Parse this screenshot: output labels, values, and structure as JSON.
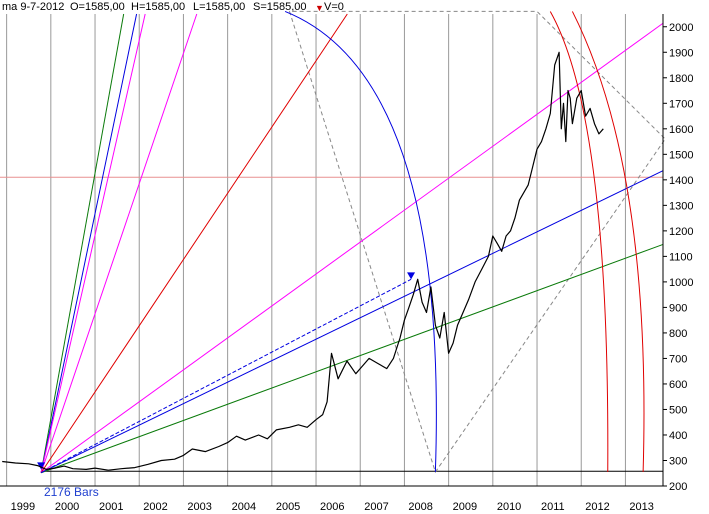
{
  "header": {
    "date": "ma 9-7-2012",
    "open": "O=1585,00",
    "high": "H=1585,00",
    "low": "L=1585,00",
    "close": "S=1585,00",
    "volume_marker_icon": "red-down-triangle-icon",
    "volume": "V=0"
  },
  "annotation": {
    "bars_label": "2176  Bars"
  },
  "colors": {
    "price": "#000000",
    "horizontal_ref": "#e89090",
    "gann_green": "#0a7a0a",
    "gann_magenta": "#ff00ff",
    "gann_red": "#e00000",
    "gann_blue": "#0000e0",
    "diamond_dashed": "#888888",
    "grid": "#999999"
  },
  "chart_data": {
    "type": "line",
    "title": "",
    "xlabel": "",
    "ylabel": "",
    "x_ticks": [
      "1999",
      "2000",
      "2001",
      "2002",
      "2003",
      "2004",
      "2005",
      "2006",
      "2007",
      "2008",
      "2009",
      "2010",
      "2011",
      "2012",
      "2013"
    ],
    "y_ticks": [
      200,
      300,
      400,
      500,
      600,
      700,
      800,
      900,
      1000,
      1100,
      1200,
      1300,
      1400,
      1500,
      1600,
      1700,
      1800,
      1900,
      2000
    ],
    "xlim": [
      1998.85,
      2013.85
    ],
    "ylim": [
      200,
      2050
    ],
    "y_axis_side": "right",
    "grid": "vertical year lines",
    "series": [
      {
        "x": [
          1998.9,
          1999.2,
          1999.5,
          1999.7,
          1999.9,
          2000.1,
          2000.3,
          2000.5,
          2000.8,
          2001.0,
          2001.3,
          2001.6,
          2001.9,
          2002.2,
          2002.5,
          2002.8,
          2003.0,
          2003.2,
          2003.5,
          2003.8,
          2004.0,
          2004.2,
          2004.4,
          2004.7,
          2004.9,
          2005.1,
          2005.4,
          2005.6,
          2005.8,
          2006.0,
          2006.15,
          2006.25,
          2006.35,
          2006.5,
          2006.7,
          2006.9,
          2007.0,
          2007.2,
          2007.4,
          2007.6,
          2007.75,
          2007.9,
          2008.0,
          2008.1,
          2008.2,
          2008.3,
          2008.4,
          2008.5,
          2008.6,
          2008.7,
          2008.8,
          2008.9,
          2009.0,
          2009.1,
          2009.2,
          2009.3,
          2009.45,
          2009.6,
          2009.75,
          2009.9,
          2010.0,
          2010.1,
          2010.2,
          2010.3,
          2010.4,
          2010.5,
          2010.6,
          2010.7,
          2010.8,
          2010.9,
          2011.0,
          2011.1,
          2011.2,
          2011.3,
          2011.4,
          2011.5,
          2011.55,
          2011.6,
          2011.65,
          2011.7,
          2011.75,
          2011.8,
          2011.9,
          2012.0,
          2012.1,
          2012.2,
          2012.3,
          2012.4,
          2012.5
        ],
        "y": [
          296,
          290,
          287,
          280,
          265,
          270,
          278,
          268,
          265,
          270,
          262,
          268,
          272,
          285,
          300,
          305,
          320,
          345,
          335,
          355,
          370,
          395,
          380,
          400,
          385,
          420,
          430,
          440,
          430,
          460,
          480,
          530,
          720,
          620,
          690,
          640,
          660,
          700,
          680,
          660,
          700,
          780,
          850,
          900,
          950,
          1010,
          920,
          880,
          980,
          830,
          780,
          880,
          720,
          760,
          830,
          870,
          930,
          1000,
          1050,
          1100,
          1180,
          1150,
          1120,
          1180,
          1200,
          1250,
          1320,
          1350,
          1380,
          1450,
          1520,
          1550,
          1600,
          1660,
          1850,
          1900,
          1600,
          1700,
          1550,
          1750,
          1720,
          1620,
          1720,
          1750,
          1650,
          1680,
          1620,
          1580,
          1600
        ]
      }
    ],
    "reference_lines": [
      {
        "kind": "horizontal",
        "y": 1410,
        "color": "horizontal_ref"
      }
    ],
    "gann_fan": {
      "origin": {
        "x": 1999.78,
        "y": 252
      },
      "rays": [
        {
          "through": {
            "x": 2001.7,
            "y": 2100
          },
          "color": "gann_green"
        },
        {
          "through": {
            "x": 2002.0,
            "y": 2100
          },
          "color": "gann_blue"
        },
        {
          "through": {
            "x": 2002.2,
            "y": 2100
          },
          "color": "gann_magenta"
        },
        {
          "through": {
            "x": 2003.4,
            "y": 2100
          },
          "color": "gann_magenta"
        },
        {
          "through": {
            "x": 2006.9,
            "y": 2100
          },
          "color": "gann_red"
        },
        {
          "through": {
            "x": 2013.9,
            "y": 2020
          },
          "color": "gann_magenta"
        },
        {
          "through": {
            "x": 2013.9,
            "y": 1440
          },
          "color": "gann_blue"
        },
        {
          "through": {
            "x": 2013.9,
            "y": 1150
          },
          "color": "gann_green"
        }
      ],
      "dashed_ray": {
        "to": {
          "x": 2008.15,
          "y": 1010
        },
        "color": "gann_blue"
      }
    },
    "arcs": [
      {
        "color": "gann_blue",
        "from": {
          "x": 2005.3,
          "y": 2060
        },
        "via": {
          "x": 2008.0,
          "y": 1480
        },
        "to": {
          "x": 2008.7,
          "y": 255
        }
      },
      {
        "color": "gann_red",
        "from": {
          "x": 2011.3,
          "y": 2060
        },
        "via": {
          "x": 2012.3,
          "y": 1400
        },
        "to": {
          "x": 2012.6,
          "y": 255
        }
      },
      {
        "color": "gann_red",
        "from": {
          "x": 2011.8,
          "y": 2060
        },
        "via": {
          "x": 2013.1,
          "y": 1300
        },
        "to": {
          "x": 2013.4,
          "y": 255
        }
      }
    ],
    "arc_markers": [
      {
        "x": 2008.15,
        "y": 1010,
        "color": "gann_blue"
      },
      {
        "x": 1999.78,
        "y": 265,
        "color": "gann_blue"
      }
    ],
    "diamond": {
      "points": [
        {
          "x": 2005.4,
          "y": 2060
        },
        {
          "x": 2008.7,
          "y": 255
        },
        {
          "x": 2013.9,
          "y": 1560
        },
        {
          "x": 2011.0,
          "y": 2060
        }
      ],
      "color": "diamond_dashed"
    },
    "baseline": {
      "y": 258,
      "from_x": 1999.78,
      "to_x": 2013.85
    }
  }
}
